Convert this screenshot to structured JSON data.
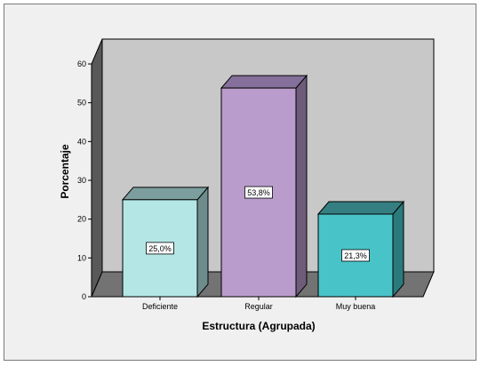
{
  "chart_data": {
    "type": "bar",
    "categories": [
      "Deficiente",
      "Regular",
      "Muy buena"
    ],
    "values": [
      25.0,
      53.8,
      21.3
    ],
    "data_labels": [
      "25,0%",
      "53,8%",
      "21,3%"
    ],
    "title": "",
    "xlabel": "Estructura (Agrupada)",
    "ylabel": "Porcentaje",
    "ylim": [
      0,
      60
    ],
    "yticks": [
      0,
      10,
      20,
      30,
      40,
      50,
      60
    ],
    "grid": false,
    "style": "3d-bar",
    "colors": {
      "bars_front": [
        "#b4e6e6",
        "#b99ccc",
        "#48c4c8"
      ],
      "bars_side": [
        "#6e8c8c",
        "#6e5c7a",
        "#2a7a7c"
      ],
      "bars_top": [
        "#7d9e9e",
        "#84709a",
        "#357f82"
      ],
      "plot_wall": "#c8c8c8",
      "plot_side_wall": "#595959",
      "plot_floor": "#737373",
      "background": "#f0f0f0"
    }
  }
}
